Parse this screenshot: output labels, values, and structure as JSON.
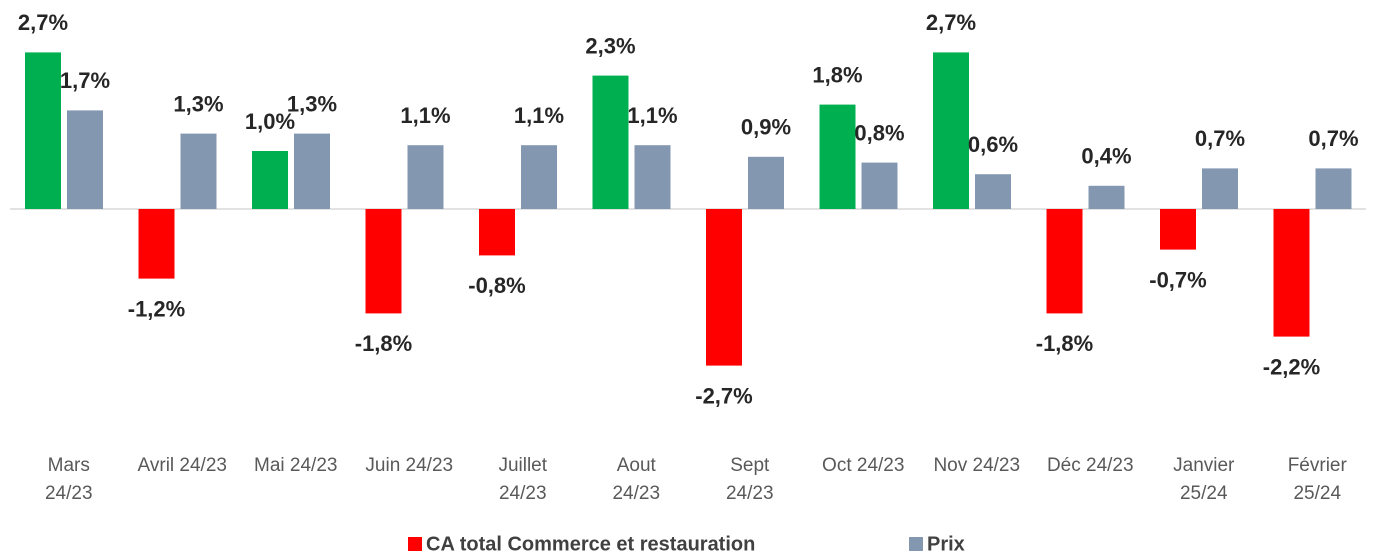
{
  "chart_data": {
    "type": "bar",
    "categories": [
      "Mars\n24/23",
      "Avril 24/23",
      "Mai 24/23",
      "Juin 24/23",
      "Juillet\n24/23",
      "Aout\n24/23",
      "Sept\n24/23",
      "Oct 24/23",
      "Nov 24/23",
      "Déc 24/23",
      "Janvier\n25/24",
      "Février\n25/24"
    ],
    "series": [
      {
        "name": "CA total Commerce et restauration",
        "color": "#ff0000",
        "positive_color": "#00b050",
        "values": [
          2.7,
          -1.2,
          1.0,
          -1.8,
          -0.8,
          2.3,
          -2.7,
          1.8,
          2.7,
          -1.8,
          -0.7,
          -2.2
        ],
        "value_labels": [
          "2,7%",
          "-1,2%",
          "1,0%",
          "-1,8%",
          "-0,8%",
          "2,3%",
          "-2,7%",
          "1,8%",
          "2,7%",
          "-1,8%",
          "-0,7%",
          "-2,2%"
        ]
      },
      {
        "name": "Prix",
        "color": "#8497b0",
        "values": [
          1.7,
          1.3,
          1.3,
          1.1,
          1.1,
          1.1,
          0.9,
          0.8,
          0.6,
          0.4,
          0.7,
          0.7
        ],
        "value_labels": [
          "1,7%",
          "1,3%",
          "1,3%",
          "1,1%",
          "1,1%",
          "1,1%",
          "0,9%",
          "0,8%",
          "0,6%",
          "0,4%",
          "0,7%",
          "0,7%"
        ]
      }
    ],
    "ylim": [
      -3.5,
      3.5
    ],
    "legend": "bottom"
  }
}
